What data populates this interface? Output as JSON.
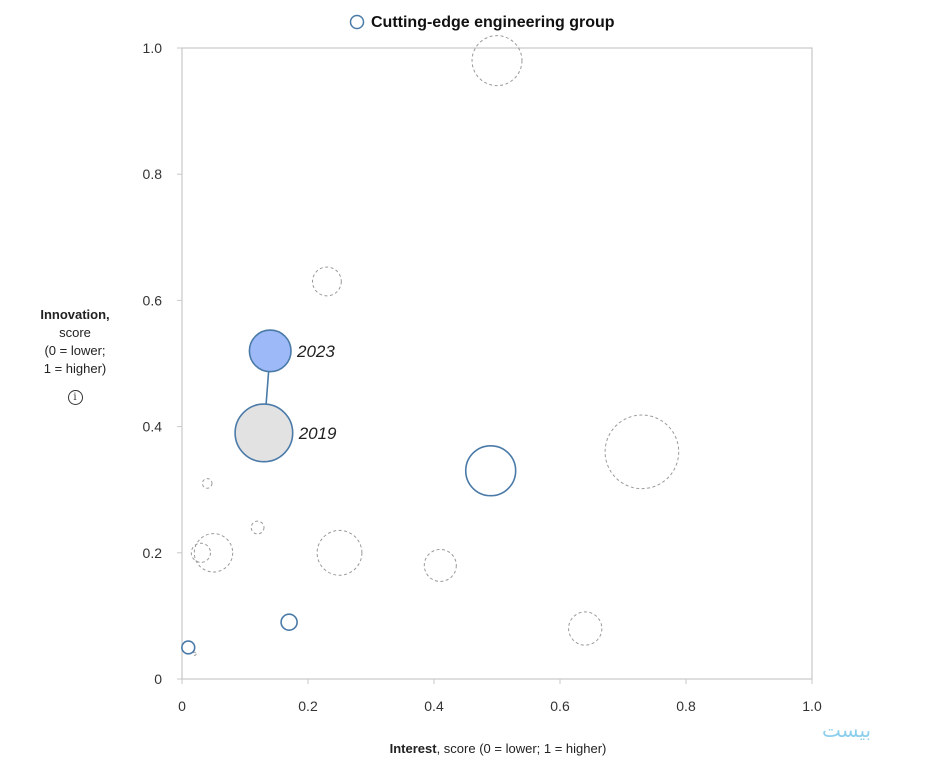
{
  "chart_data": {
    "type": "scatter",
    "title": "",
    "legend": {
      "label": "Cutting-edge engineering group",
      "position": "top-center"
    },
    "xlabel_bold": "Interest",
    "xlabel_rest": ", score (0 = lower; 1 = higher)",
    "ylabel_bold": "Innovation,",
    "ylabel_lines": [
      "score",
      "(0 = lower;",
      "1 = higher)"
    ],
    "xlim": [
      0,
      1
    ],
    "ylim": [
      0,
      1
    ],
    "xticks": [
      0,
      0.2,
      0.4,
      0.6,
      0.8,
      1.0
    ],
    "yticks": [
      0,
      0.2,
      0.4,
      0.6,
      0.8,
      1.0
    ],
    "xtick_labels": [
      "0",
      "0.2",
      "0.4",
      "0.6",
      "0.8",
      "1.0"
    ],
    "ytick_labels": [
      "0",
      "0.2",
      "0.4",
      "0.6",
      "0.8",
      "1.0"
    ],
    "highlighted_group": [
      {
        "x": 0.13,
        "y": 0.39,
        "size": 0.9,
        "label": "2019",
        "fill": "#e2e2e2"
      },
      {
        "x": 0.14,
        "y": 0.52,
        "size": 0.65,
        "label": "2023",
        "fill": "#9db9f7"
      }
    ],
    "engineering_group_points": [
      {
        "x": 0.49,
        "y": 0.33,
        "size": 0.78
      },
      {
        "x": 0.17,
        "y": 0.09,
        "size": 0.25
      },
      {
        "x": 0.01,
        "y": 0.05,
        "size": 0.2
      }
    ],
    "other_points": [
      {
        "x": 0.5,
        "y": 0.98,
        "size": 0.78
      },
      {
        "x": 0.23,
        "y": 0.63,
        "size": 0.45
      },
      {
        "x": 0.73,
        "y": 0.36,
        "size": 1.15
      },
      {
        "x": 0.04,
        "y": 0.31,
        "size": 0.15
      },
      {
        "x": 0.12,
        "y": 0.24,
        "size": 0.2
      },
      {
        "x": 0.05,
        "y": 0.2,
        "size": 0.6
      },
      {
        "x": 0.03,
        "y": 0.2,
        "size": 0.3
      },
      {
        "x": 0.25,
        "y": 0.2,
        "size": 0.7
      },
      {
        "x": 0.41,
        "y": 0.18,
        "size": 0.5
      },
      {
        "x": 0.64,
        "y": 0.08,
        "size": 0.52
      },
      {
        "x": 0.02,
        "y": 0.04,
        "size": 0.05
      }
    ],
    "colors": {
      "engineering_stroke": "#4a7aa8",
      "other_stroke": "#9a9a9a",
      "axis": "#c8c8c8",
      "tick_text": "#333333"
    }
  },
  "watermark": "بیست"
}
